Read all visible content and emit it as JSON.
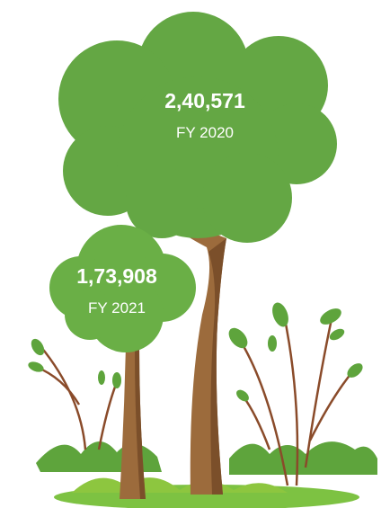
{
  "trees": [
    {
      "value": "2,40,571",
      "label": "FY 2020"
    },
    {
      "value": "1,73,908",
      "label": "FY 2021"
    }
  ]
}
